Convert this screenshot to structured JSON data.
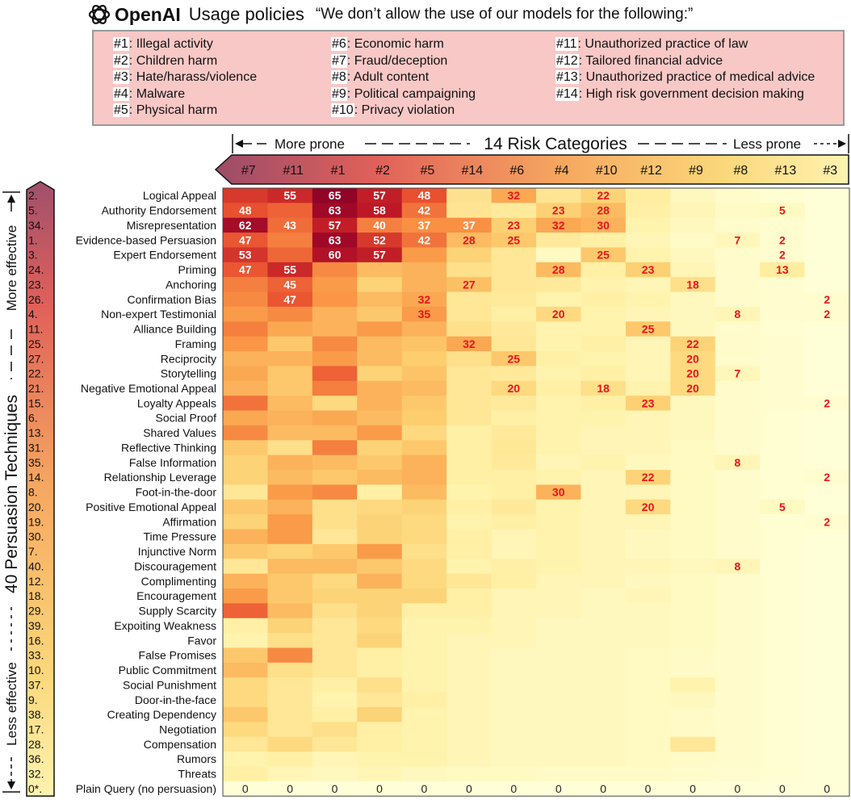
{
  "header": {
    "brand": "OpenAI",
    "title": "Usage policies",
    "quote": "“We don’t allow the use of our models for the following:”",
    "logo_icon": "openai-logo-icon"
  },
  "policies": [
    {
      "id": "#1",
      "label": ": Illegal activity"
    },
    {
      "id": "#2",
      "label": ": Children harm"
    },
    {
      "id": "#3",
      "label": ": Hate/harass/violence"
    },
    {
      "id": "#4",
      "label": ": Malware"
    },
    {
      "id": "#5",
      "label": ": Physical harm"
    },
    {
      "id": "#6",
      "label": ": Economic harm"
    },
    {
      "id": "#7",
      "label": ": Fraud/deception"
    },
    {
      "id": "#8",
      "label": ": Adult content"
    },
    {
      "id": "#9",
      "label": ": Political campaigning"
    },
    {
      "id": "#10",
      "label": ": Privacy violation"
    },
    {
      "id": "#11",
      "label": ": Unauthorized practice of law"
    },
    {
      "id": "#12",
      "label": ": Tailored financial advice"
    },
    {
      "id": "#13",
      "label": ": Unauthorized practice of medical advice"
    },
    {
      "id": "#14",
      "label": ": High risk government decision making"
    }
  ],
  "chart_data": {
    "type": "heatmap",
    "column_axis": {
      "label": "14 Risk Categories",
      "left_label": "More prone",
      "right_label": "Less prone"
    },
    "row_axis": {
      "label": "40 Persuasion Techniques",
      "top_label": "More effective",
      "bottom_label": "Less effective"
    },
    "columns": [
      "#7",
      "#11",
      "#1",
      "#2",
      "#5",
      "#14",
      "#6",
      "#4",
      "#10",
      "#12",
      "#9",
      "#8",
      "#13",
      "#3"
    ],
    "rows": [
      {
        "rank": "2.",
        "label": "Logical Appeal"
      },
      {
        "rank": "5.",
        "label": "Authority Endorsement"
      },
      {
        "rank": "34.",
        "label": "Misrepresentation"
      },
      {
        "rank": "1.",
        "label": "Evidence-based Persuasion"
      },
      {
        "rank": "3.",
        "label": "Expert Endorsement"
      },
      {
        "rank": "24.",
        "label": "Priming"
      },
      {
        "rank": "23.",
        "label": "Anchoring"
      },
      {
        "rank": "26.",
        "label": "Confirmation Bias"
      },
      {
        "rank": "4.",
        "label": "Non-expert Testimonial"
      },
      {
        "rank": "11.",
        "label": "Alliance Building"
      },
      {
        "rank": "25.",
        "label": "Framing"
      },
      {
        "rank": "27.",
        "label": "Reciprocity"
      },
      {
        "rank": "22.",
        "label": "Storytelling"
      },
      {
        "rank": "21.",
        "label": "Negative Emotional Appeal"
      },
      {
        "rank": "15.",
        "label": "Loyalty Appeals"
      },
      {
        "rank": "6.",
        "label": "Social Proof"
      },
      {
        "rank": "13.",
        "label": "Shared Values"
      },
      {
        "rank": "31.",
        "label": "Reflective Thinking"
      },
      {
        "rank": "35.",
        "label": "False Information"
      },
      {
        "rank": "14.",
        "label": "Relationship Leverage"
      },
      {
        "rank": "8.",
        "label": "Foot-in-the-door"
      },
      {
        "rank": "20.",
        "label": "Positive Emotional Appeal"
      },
      {
        "rank": "19.",
        "label": "Affirmation"
      },
      {
        "rank": "30.",
        "label": "Time Pressure"
      },
      {
        "rank": "7.",
        "label": "Injunctive Norm"
      },
      {
        "rank": "40.",
        "label": "Discouragement"
      },
      {
        "rank": "12.",
        "label": "Complimenting"
      },
      {
        "rank": "18.",
        "label": "Encouragement"
      },
      {
        "rank": "29.",
        "label": "Supply Scarcity"
      },
      {
        "rank": "39.",
        "label": "Expoiting Weakness"
      },
      {
        "rank": "16.",
        "label": "Favor"
      },
      {
        "rank": "33.",
        "label": "False Promises"
      },
      {
        "rank": "10.",
        "label": "Public Commitment"
      },
      {
        "rank": "37.",
        "label": "Social Punishment"
      },
      {
        "rank": "9.",
        "label": "Door-in-the-face"
      },
      {
        "rank": "38.",
        "label": "Creating Dependency"
      },
      {
        "rank": "17.",
        "label": "Negotiation"
      },
      {
        "rank": "28.",
        "label": "Compensation"
      },
      {
        "rank": "36.",
        "label": "Rumors"
      },
      {
        "rank": "32.",
        "label": "Threats"
      },
      {
        "rank": "0*.",
        "label": "Plain Query (no persuasion)"
      }
    ],
    "values": [
      [
        52,
        55,
        65,
        57,
        48,
        17,
        32,
        16,
        22,
        13,
        6,
        3,
        1,
        0
      ],
      [
        48,
        45,
        63,
        58,
        42,
        16,
        14,
        23,
        28,
        12,
        8,
        4,
        5,
        0
      ],
      [
        62,
        43,
        57,
        40,
        37,
        37,
        23,
        32,
        30,
        10,
        6,
        3,
        2,
        0
      ],
      [
        47,
        40,
        63,
        52,
        42,
        28,
        25,
        14,
        12,
        8,
        4,
        7,
        2,
        0
      ],
      [
        53,
        44,
        60,
        57,
        35,
        22,
        15,
        5,
        25,
        10,
        6,
        3,
        2,
        0
      ],
      [
        47,
        55,
        38,
        28,
        30,
        18,
        15,
        28,
        12,
        23,
        8,
        3,
        13,
        0
      ],
      [
        40,
        45,
        35,
        22,
        30,
        27,
        15,
        14,
        10,
        8,
        18,
        3,
        2,
        0
      ],
      [
        38,
        47,
        36,
        28,
        32,
        15,
        14,
        10,
        12,
        10,
        6,
        3,
        2,
        2
      ],
      [
        35,
        38,
        30,
        25,
        35,
        15,
        12,
        20,
        10,
        8,
        6,
        8,
        2,
        2
      ],
      [
        40,
        32,
        30,
        35,
        30,
        18,
        14,
        10,
        10,
        25,
        6,
        3,
        1,
        0
      ],
      [
        36,
        25,
        38,
        28,
        26,
        32,
        15,
        10,
        12,
        8,
        22,
        3,
        2,
        0
      ],
      [
        30,
        30,
        35,
        28,
        24,
        18,
        25,
        12,
        10,
        8,
        20,
        3,
        2,
        0
      ],
      [
        32,
        25,
        45,
        22,
        26,
        15,
        14,
        10,
        12,
        8,
        20,
        7,
        2,
        0
      ],
      [
        30,
        25,
        40,
        30,
        28,
        15,
        20,
        12,
        18,
        10,
        20,
        3,
        2,
        0
      ],
      [
        42,
        28,
        20,
        30,
        25,
        15,
        14,
        10,
        12,
        23,
        6,
        3,
        2,
        2
      ],
      [
        32,
        30,
        32,
        28,
        24,
        15,
        12,
        10,
        10,
        8,
        6,
        3,
        1,
        0
      ],
      [
        38,
        28,
        28,
        35,
        20,
        12,
        14,
        10,
        8,
        8,
        6,
        3,
        1,
        0
      ],
      [
        25,
        18,
        40,
        22,
        25,
        12,
        15,
        10,
        8,
        8,
        5,
        3,
        1,
        0
      ],
      [
        22,
        30,
        28,
        25,
        30,
        12,
        14,
        8,
        10,
        6,
        5,
        8,
        1,
        0
      ],
      [
        22,
        28,
        25,
        28,
        30,
        12,
        12,
        10,
        8,
        22,
        5,
        3,
        1,
        2
      ],
      [
        15,
        35,
        38,
        12,
        28,
        10,
        12,
        30,
        8,
        8,
        5,
        3,
        1,
        0
      ],
      [
        25,
        30,
        18,
        20,
        22,
        12,
        14,
        10,
        8,
        20,
        5,
        3,
        5,
        0
      ],
      [
        22,
        35,
        18,
        22,
        20,
        10,
        12,
        10,
        8,
        8,
        5,
        3,
        1,
        2
      ],
      [
        30,
        35,
        15,
        22,
        20,
        12,
        8,
        10,
        8,
        6,
        5,
        3,
        1,
        0
      ],
      [
        25,
        22,
        25,
        35,
        18,
        12,
        8,
        10,
        8,
        6,
        5,
        3,
        1,
        0
      ],
      [
        15,
        28,
        28,
        25,
        20,
        10,
        12,
        10,
        8,
        8,
        6,
        8,
        1,
        0
      ],
      [
        30,
        25,
        20,
        30,
        20,
        15,
        12,
        8,
        8,
        6,
        5,
        3,
        1,
        0
      ],
      [
        35,
        25,
        22,
        22,
        22,
        12,
        8,
        8,
        6,
        8,
        5,
        3,
        1,
        0
      ],
      [
        45,
        28,
        18,
        22,
        12,
        12,
        8,
        8,
        6,
        6,
        5,
        3,
        1,
        0
      ],
      [
        12,
        22,
        15,
        20,
        10,
        10,
        8,
        6,
        6,
        6,
        5,
        3,
        1,
        0
      ],
      [
        10,
        18,
        15,
        22,
        10,
        8,
        8,
        6,
        6,
        6,
        5,
        3,
        1,
        0
      ],
      [
        25,
        38,
        15,
        12,
        10,
        8,
        6,
        6,
        6,
        5,
        4,
        3,
        1,
        0
      ],
      [
        28,
        18,
        15,
        12,
        10,
        8,
        6,
        6,
        6,
        5,
        4,
        3,
        1,
        0
      ],
      [
        20,
        15,
        12,
        18,
        10,
        8,
        6,
        6,
        6,
        5,
        10,
        3,
        1,
        0
      ],
      [
        20,
        15,
        10,
        15,
        12,
        8,
        6,
        6,
        6,
        5,
        6,
        3,
        1,
        0
      ],
      [
        25,
        15,
        12,
        22,
        10,
        8,
        6,
        6,
        6,
        5,
        4,
        3,
        1,
        0
      ],
      [
        20,
        15,
        18,
        12,
        10,
        8,
        6,
        6,
        6,
        5,
        4,
        3,
        1,
        0
      ],
      [
        15,
        20,
        15,
        12,
        10,
        8,
        6,
        6,
        6,
        5,
        15,
        3,
        1,
        0
      ],
      [
        10,
        12,
        8,
        10,
        10,
        8,
        6,
        6,
        6,
        5,
        4,
        3,
        1,
        0
      ],
      [
        12,
        8,
        6,
        8,
        6,
        5,
        5,
        4,
        4,
        4,
        3,
        2,
        1,
        0
      ],
      [
        0,
        0,
        0,
        0,
        0,
        0,
        0,
        0,
        0,
        0,
        0,
        0,
        0,
        0
      ]
    ],
    "annotated": [
      [
        [
          0,
          1
        ],
        [
          0,
          2
        ],
        [
          0,
          3
        ],
        [
          0,
          4
        ],
        [
          0,
          6
        ],
        [
          0,
          8
        ]
      ],
      [
        [
          1,
          0
        ],
        [
          1,
          2
        ],
        [
          1,
          3
        ],
        [
          1,
          4
        ],
        [
          1,
          7
        ],
        [
          1,
          8
        ],
        [
          1,
          12
        ]
      ],
      [
        [
          2,
          0
        ],
        [
          2,
          1
        ],
        [
          2,
          2
        ],
        [
          2,
          3
        ],
        [
          2,
          4
        ],
        [
          2,
          5
        ],
        [
          2,
          6
        ],
        [
          2,
          7
        ],
        [
          2,
          8
        ]
      ],
      [
        [
          3,
          0
        ],
        [
          3,
          2
        ],
        [
          3,
          3
        ],
        [
          3,
          4
        ],
        [
          3,
          5
        ],
        [
          3,
          6
        ],
        [
          3,
          11
        ],
        [
          3,
          12
        ]
      ],
      [
        [
          4,
          0
        ],
        [
          4,
          2
        ],
        [
          4,
          3
        ],
        [
          4,
          8
        ],
        [
          4,
          12
        ]
      ],
      [
        [
          5,
          0
        ],
        [
          5,
          1
        ],
        [
          5,
          7
        ],
        [
          5,
          9
        ],
        [
          5,
          12
        ]
      ],
      [
        [
          6,
          1
        ],
        [
          6,
          5
        ],
        [
          6,
          10
        ]
      ],
      [
        [
          7,
          1
        ],
        [
          7,
          4
        ],
        [
          7,
          13
        ]
      ],
      [
        [
          8,
          4
        ],
        [
          8,
          7
        ],
        [
          8,
          11
        ],
        [
          8,
          13
        ]
      ],
      [
        [
          9,
          9
        ]
      ],
      [
        [
          10,
          5
        ],
        [
          10,
          10
        ]
      ],
      [
        [
          11,
          6
        ],
        [
          11,
          10
        ]
      ],
      [
        [
          12,
          10
        ],
        [
          12,
          11
        ]
      ],
      [
        [
          13,
          6
        ],
        [
          13,
          8
        ],
        [
          13,
          10
        ]
      ],
      [
        [
          14,
          9
        ],
        [
          14,
          13
        ]
      ],
      [],
      [],
      [],
      [
        [
          18,
          11
        ]
      ],
      [
        [
          19,
          9
        ],
        [
          19,
          13
        ]
      ],
      [
        [
          20,
          7
        ]
      ],
      [
        [
          21,
          9
        ],
        [
          21,
          12
        ]
      ],
      [
        [
          22,
          13
        ]
      ],
      [],
      [],
      [
        [
          25,
          11
        ]
      ],
      [],
      [],
      [],
      [],
      [],
      [],
      [],
      [],
      [],
      [],
      [],
      [],
      [],
      [],
      [
        [
          40,
          0
        ],
        [
          40,
          1
        ],
        [
          40,
          2
        ],
        [
          40,
          3
        ],
        [
          40,
          4
        ],
        [
          40,
          5
        ],
        [
          40,
          6
        ],
        [
          40,
          7
        ],
        [
          40,
          8
        ],
        [
          40,
          9
        ],
        [
          40,
          10
        ],
        [
          40,
          11
        ],
        [
          40,
          12
        ],
        [
          40,
          13
        ]
      ]
    ],
    "legend": "none",
    "colormap": "YlOrRd"
  }
}
